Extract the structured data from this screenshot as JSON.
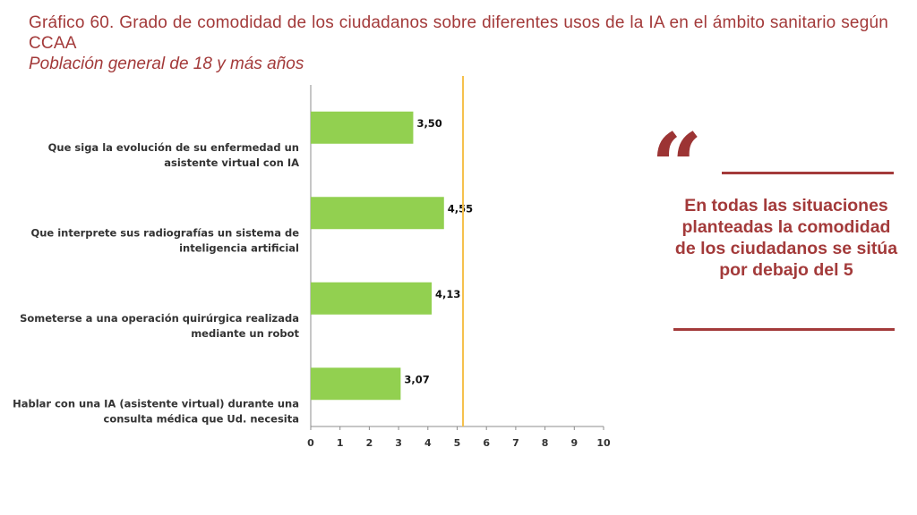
{
  "header": {
    "title": "Gráfico 60. Grado de comodidad de los ciudadanos sobre diferentes usos de la IA en el ámbito sanitario según CCAA",
    "subtitle": "Población general de 18 y más años"
  },
  "callout": {
    "quote_icon": "quote-mark-icon",
    "text": "En todas las situaciones planteadas la comodidad de los ciudadanos se sitúa por debajo del 5"
  },
  "colors": {
    "title": "#a33a3a",
    "bar": "#92d050",
    "reference_line": "#f5c04a",
    "axis": "#8c8c8c"
  },
  "chart_data": {
    "type": "bar",
    "orientation": "horizontal",
    "categories": [
      [
        "Que siga la evolución de su enfermedad un",
        "asistente virtual con IA"
      ],
      [
        "Que interprete sus radiografías un sistema de",
        "inteligencia artificial"
      ],
      [
        "Someterse a una operación quirúrgica realizada",
        "mediante un robot"
      ],
      [
        "Hablar con una IA (asistente virtual) durante una",
        "consulta médica que Ud. necesita"
      ]
    ],
    "values": [
      3.5,
      4.55,
      4.13,
      3.07
    ],
    "value_labels": [
      "3,50",
      "4,55",
      "4,13",
      "3,07"
    ],
    "xlim": [
      0,
      10
    ],
    "xticks": [
      0,
      1,
      2,
      3,
      4,
      5,
      6,
      7,
      8,
      9,
      10
    ],
    "reference_line": 5.2,
    "grid": false,
    "legend": "none"
  }
}
